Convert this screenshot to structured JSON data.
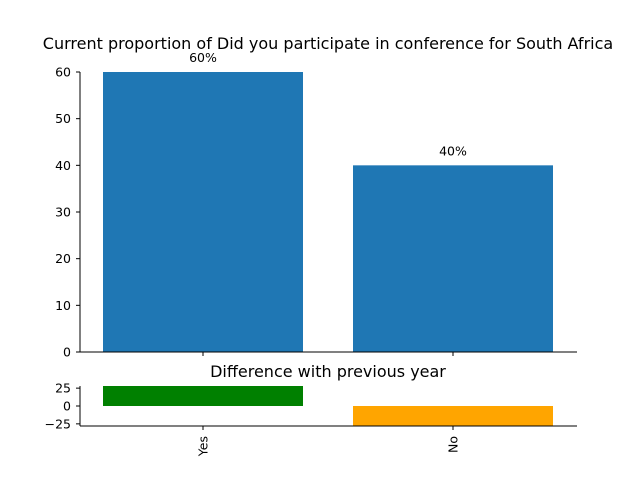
{
  "chart_data": [
    {
      "type": "bar",
      "title": "Current proportion of Did you participate in conference for South Africa",
      "categories": [
        "Yes",
        "No"
      ],
      "values": [
        60,
        40
      ],
      "data_labels": [
        "60%",
        "40%"
      ],
      "ylim": [
        0,
        60
      ],
      "yticks": [
        0,
        10,
        20,
        30,
        40,
        50,
        60
      ],
      "bar_color": "#1f77b4",
      "grid": false,
      "legend": "none"
    },
    {
      "type": "bar",
      "title": "Difference with previous year",
      "categories": [
        "Yes",
        "No"
      ],
      "values": [
        28,
        -28
      ],
      "ylim": [
        -28,
        28
      ],
      "yticks": [
        -25,
        0,
        25
      ],
      "tick_labels": [
        "−25",
        "0",
        "25"
      ],
      "colors": [
        "#008000",
        "#ffa500"
      ],
      "grid": false,
      "legend": "none"
    }
  ]
}
